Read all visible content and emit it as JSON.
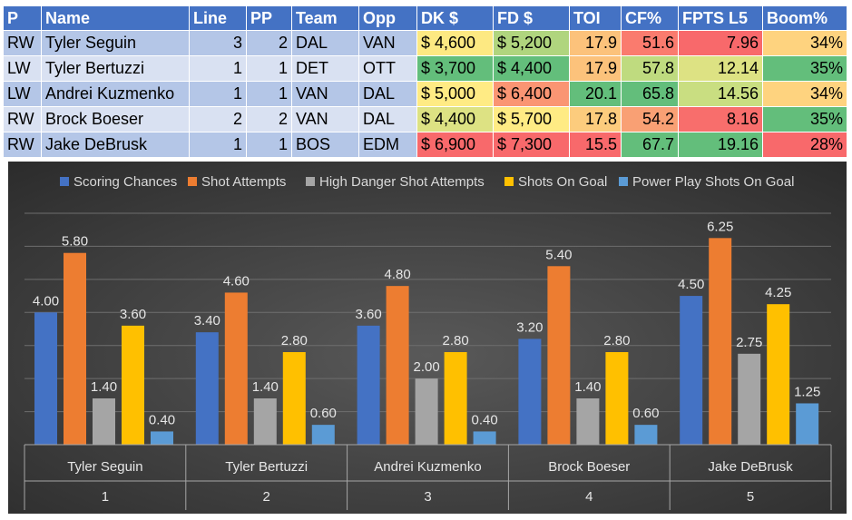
{
  "table": {
    "headers": [
      "P",
      "Name",
      "Line",
      "PP",
      "Team",
      "Opp",
      "DK $",
      "FD $",
      "TOI",
      "CF%",
      "FPTS L5",
      "Boom%"
    ],
    "rows": [
      [
        "RW",
        "Tyler Seguin",
        "3",
        "2",
        "DAL",
        "VAN",
        "$ 4,600",
        "$ 5,200",
        "17.9",
        "51.6",
        "7.96",
        "34%"
      ],
      [
        "LW",
        "Tyler Bertuzzi",
        "1",
        "1",
        "DET",
        "OTT",
        "$ 3,700",
        "$ 4,400",
        "17.9",
        "57.8",
        "12.14",
        "35%"
      ],
      [
        "LW",
        "Andrei Kuzmenko",
        "1",
        "1",
        "VAN",
        "DAL",
        "$ 5,000",
        "$ 6,400",
        "20.1",
        "65.8",
        "14.56",
        "34%"
      ],
      [
        "RW",
        "Brock Boeser",
        "2",
        "2",
        "VAN",
        "DAL",
        "$ 4,400",
        "$ 5,700",
        "17.8",
        "54.2",
        "8.16",
        "35%"
      ],
      [
        "RW",
        "Jake DeBrusk",
        "1",
        "1",
        "BOS",
        "EDM",
        "$ 6,900",
        "$ 7,300",
        "15.5",
        "67.7",
        "19.16",
        "28%"
      ]
    ],
    "heat_colors": [
      [
        "#fde982",
        "#b0d57e",
        "#fcc27b",
        "#fa7b6e",
        "#f8696b",
        "#fed37f"
      ],
      [
        "#63be7b",
        "#63be7b",
        "#fcc27b",
        "#bfdb7f",
        "#ddE283",
        "#63be7b"
      ],
      [
        "#ffeb84",
        "#fa9573",
        "#63be7b",
        "#63be7b",
        "#c9de81",
        "#fed37f"
      ],
      [
        "#ddE283",
        "#ffeb84",
        "#fccc7d",
        "#f9a074",
        "#f86e6c",
        "#63be7b"
      ],
      [
        "#f8696b",
        "#f8696b",
        "#f8696b",
        "#63be7b",
        "#63be7b",
        "#f8696b"
      ]
    ]
  },
  "chart_data": {
    "type": "bar",
    "categories": [
      "Tyler Seguin",
      "Tyler Bertuzzi",
      "Andrei Kuzmenko",
      "Brock Boeser",
      "Jake DeBrusk"
    ],
    "category_index": [
      "1",
      "2",
      "3",
      "4",
      "5"
    ],
    "series": [
      {
        "name": "Scoring Chances",
        "color": "#4472c4",
        "values": [
          4.0,
          3.4,
          3.6,
          3.2,
          4.5
        ]
      },
      {
        "name": "Shot Attempts",
        "color": "#ed7d31",
        "values": [
          5.8,
          4.6,
          4.8,
          5.4,
          6.25
        ]
      },
      {
        "name": "High Danger Shot Attempts",
        "color": "#a5a5a5",
        "values": [
          1.4,
          1.4,
          2.0,
          1.4,
          2.75
        ]
      },
      {
        "name": "Shots On Goal",
        "color": "#ffc000",
        "values": [
          3.6,
          2.8,
          2.8,
          2.8,
          4.25
        ]
      },
      {
        "name": "Power Play Shots On Goal",
        "color": "#5b9bd5",
        "values": [
          0.4,
          0.6,
          0.4,
          0.6,
          1.25
        ]
      }
    ],
    "ylim": [
      0,
      7
    ],
    "grid": true,
    "legend": "top",
    "data_labels": true
  }
}
